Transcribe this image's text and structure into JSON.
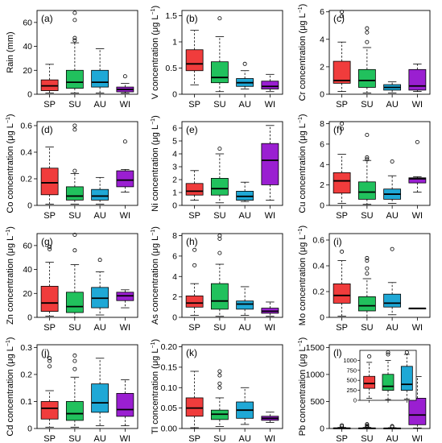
{
  "figure": {
    "seasons": [
      "SP",
      "SU",
      "AU",
      "WI"
    ],
    "colors": [
      "#f03c3c",
      "#21c15d",
      "#1fa8d6",
      "#9a1fd1"
    ]
  },
  "chart_data": [
    {
      "type": "box",
      "label": "(a)",
      "ylabel": "Rain (mm)",
      "unit": false,
      "ylim": [
        0,
        70
      ],
      "yticks": [
        0,
        20,
        40,
        60
      ],
      "categories": [
        "SP",
        "SU",
        "AU",
        "WI"
      ],
      "boxes": [
        {
          "min": 1,
          "q1": 3,
          "median": 7,
          "q3": 12,
          "max": 25,
          "outliers": []
        },
        {
          "min": 1,
          "q1": 5,
          "median": 10,
          "q3": 20,
          "max": 43,
          "outliers": [
            45,
            47,
            62,
            68
          ]
        },
        {
          "min": 1,
          "q1": 6,
          "median": 10,
          "q3": 20,
          "max": 38,
          "outliers": []
        },
        {
          "min": 1,
          "q1": 2,
          "median": 4,
          "q3": 6,
          "max": 9,
          "outliers": [
            15
          ]
        }
      ]
    },
    {
      "type": "box",
      "label": "(b)",
      "ylabel": "V concentration",
      "unit": true,
      "ylim": [
        0,
        1.6
      ],
      "yticks": [
        0.0,
        0.5,
        1.0,
        1.5
      ],
      "categories": [
        "SP",
        "SU",
        "AU",
        "WI"
      ],
      "boxes": [
        {
          "min": 0.18,
          "q1": 0.45,
          "median": 0.58,
          "q3": 0.85,
          "max": 1.22,
          "outliers": []
        },
        {
          "min": 0.05,
          "q1": 0.22,
          "median": 0.32,
          "q3": 0.62,
          "max": 1.1,
          "outliers": [
            1.45
          ]
        },
        {
          "min": 0.1,
          "q1": 0.15,
          "median": 0.22,
          "q3": 0.3,
          "max": 0.45,
          "outliers": [
            0.58
          ]
        },
        {
          "min": 0.05,
          "q1": 0.1,
          "median": 0.15,
          "q3": 0.25,
          "max": 0.38,
          "outliers": []
        }
      ]
    },
    {
      "type": "box",
      "label": "(c)",
      "ylabel": "Cr concentration",
      "unit": true,
      "ylim": [
        0,
        6.1
      ],
      "yticks": [
        0,
        2,
        4,
        6
      ],
      "categories": [
        "SP",
        "SU",
        "AU",
        "WI"
      ],
      "boxes": [
        {
          "min": 0.2,
          "q1": 0.8,
          "median": 1.0,
          "q3": 2.4,
          "max": 3.8,
          "outliers": [
            5.7,
            6.0
          ]
        },
        {
          "min": 0.1,
          "q1": 0.5,
          "median": 1.0,
          "q3": 1.8,
          "max": 3.4,
          "outliers": [
            3.8,
            4.5,
            4.8
          ]
        },
        {
          "min": 0.1,
          "q1": 0.3,
          "median": 0.5,
          "q3": 0.7,
          "max": 0.9,
          "outliers": []
        },
        {
          "min": 0.2,
          "q1": 0.3,
          "median": 0.6,
          "q3": 1.8,
          "max": 2.2,
          "outliers": []
        }
      ]
    },
    {
      "type": "box",
      "label": "(d)",
      "ylabel": "Co concentration",
      "unit": true,
      "ylim": [
        0,
        0.63
      ],
      "yticks": [
        0.0,
        0.2,
        0.4,
        0.6
      ],
      "categories": [
        "SP",
        "SU",
        "AU",
        "WI"
      ],
      "boxes": [
        {
          "min": 0.01,
          "q1": 0.08,
          "median": 0.17,
          "q3": 0.28,
          "max": 0.44,
          "outliers": []
        },
        {
          "min": 0.01,
          "q1": 0.04,
          "median": 0.07,
          "q3": 0.14,
          "max": 0.24,
          "outliers": [
            0.26,
            0.57,
            0.6
          ]
        },
        {
          "min": 0.01,
          "q1": 0.04,
          "median": 0.07,
          "q3": 0.12,
          "max": 0.21,
          "outliers": []
        },
        {
          "min": 0.1,
          "q1": 0.14,
          "median": 0.19,
          "q3": 0.26,
          "max": 0.27,
          "outliers": [
            0.48
          ]
        }
      ]
    },
    {
      "type": "box",
      "label": "(e)",
      "ylabel": "Ni concentration",
      "unit": true,
      "ylim": [
        0,
        6.5
      ],
      "yticks": [
        0,
        1,
        2,
        3,
        4,
        5,
        6
      ],
      "categories": [
        "SP",
        "SU",
        "AU",
        "WI"
      ],
      "boxes": [
        {
          "min": 0.4,
          "q1": 0.8,
          "median": 1.1,
          "q3": 1.7,
          "max": 2.7,
          "outliers": []
        },
        {
          "min": 0.2,
          "q1": 0.8,
          "median": 1.3,
          "q3": 2.1,
          "max": 4.0,
          "outliers": [
            4.4
          ]
        },
        {
          "min": 0.3,
          "q1": 0.4,
          "median": 0.7,
          "q3": 1.1,
          "max": 1.8,
          "outliers": []
        },
        {
          "min": 0.4,
          "q1": 1.6,
          "median": 3.5,
          "q3": 4.8,
          "max": 6.2,
          "outliers": []
        }
      ]
    },
    {
      "type": "box",
      "label": "(f)",
      "ylabel": "Cu concentration",
      "unit": true,
      "ylim": [
        0,
        8.2
      ],
      "yticks": [
        0,
        2,
        4,
        6,
        8
      ],
      "categories": [
        "SP",
        "SU",
        "AU",
        "WI"
      ],
      "boxes": [
        {
          "min": 0.2,
          "q1": 1.2,
          "median": 2.4,
          "q3": 3.2,
          "max": 5.0,
          "outliers": [
            7.5,
            8.0
          ]
        },
        {
          "min": 0.1,
          "q1": 0.6,
          "median": 1.3,
          "q3": 2.3,
          "max": 4.4,
          "outliers": [
            4.5,
            4.7,
            6.9
          ]
        },
        {
          "min": 0.2,
          "q1": 0.6,
          "median": 1.1,
          "q3": 1.6,
          "max": 2.9,
          "outliers": [
            4.3
          ]
        },
        {
          "min": 1.3,
          "q1": 2.2,
          "median": 2.6,
          "q3": 2.7,
          "max": 2.8,
          "outliers": [
            6.2
          ]
        }
      ]
    },
    {
      "type": "box",
      "label": "(g)",
      "ylabel": "Zn concentration",
      "unit": true,
      "ylim": [
        0,
        70
      ],
      "yticks": [
        0,
        20,
        40,
        60
      ],
      "categories": [
        "SP",
        "SU",
        "AU",
        "WI"
      ],
      "boxes": [
        {
          "min": 1,
          "q1": 5,
          "median": 12,
          "q3": 26,
          "max": 46,
          "outliers": [
            57,
            59
          ]
        },
        {
          "min": 0,
          "q1": 4,
          "median": 9,
          "q3": 21,
          "max": 44,
          "outliers": [
            56,
            69
          ]
        },
        {
          "min": 2,
          "q1": 8,
          "median": 16,
          "q3": 25,
          "max": 38,
          "outliers": [
            48
          ]
        },
        {
          "min": 8,
          "q1": 14,
          "median": 18,
          "q3": 21,
          "max": 23,
          "outliers": []
        }
      ]
    },
    {
      "type": "box",
      "label": "(h)",
      "ylabel": "As concentration",
      "unit": true,
      "ylim": [
        0,
        8.2
      ],
      "yticks": [
        0,
        2,
        4,
        6,
        8
      ],
      "categories": [
        "SP",
        "SU",
        "AU",
        "WI"
      ],
      "boxes": [
        {
          "min": 0.2,
          "q1": 1.0,
          "median": 1.4,
          "q3": 2.1,
          "max": 3.3,
          "outliers": [
            5.1,
            6.6
          ]
        },
        {
          "min": 0.1,
          "q1": 0.8,
          "median": 1.6,
          "q3": 3.3,
          "max": 5.2,
          "outliers": [
            6.3,
            7.7,
            8.0
          ]
        },
        {
          "min": 0.2,
          "q1": 0.8,
          "median": 1.3,
          "q3": 1.6,
          "max": 3.0,
          "outliers": []
        },
        {
          "min": 0.1,
          "q1": 0.4,
          "median": 0.6,
          "q3": 0.9,
          "max": 1.5,
          "outliers": []
        }
      ]
    },
    {
      "type": "box",
      "label": "(i)",
      "ylabel": "Mo concentration",
      "unit": true,
      "ylim": [
        0,
        0.65
      ],
      "yticks": [
        0.0,
        0.2,
        0.4,
        0.6
      ],
      "categories": [
        "SP",
        "SU",
        "AU",
        "WI"
      ],
      "boxes": [
        {
          "min": 0.01,
          "q1": 0.11,
          "median": 0.17,
          "q3": 0.26,
          "max": 0.44,
          "outliers": [
            0.51
          ]
        },
        {
          "min": 0.0,
          "q1": 0.05,
          "median": 0.09,
          "q3": 0.16,
          "max": 0.3,
          "outliers": [
            0.34,
            0.38,
            0.44,
            0.46
          ]
        },
        {
          "min": 0.02,
          "q1": 0.08,
          "median": 0.11,
          "q3": 0.18,
          "max": 0.27,
          "outliers": [
            0.53
          ]
        },
        {
          "min": 0.068,
          "q1": 0.069,
          "median": 0.07,
          "q3": 0.071,
          "max": 0.072,
          "outliers": []
        }
      ]
    },
    {
      "type": "box",
      "label": "(j)",
      "ylabel": "Cd concentration",
      "unit": true,
      "ylim": [
        0,
        0.31
      ],
      "yticks": [
        0.0,
        0.1,
        0.2,
        0.3
      ],
      "categories": [
        "SP",
        "SU",
        "AU",
        "WI"
      ],
      "boxes": [
        {
          "min": 0.005,
          "q1": 0.035,
          "median": 0.075,
          "q3": 0.1,
          "max": 0.14,
          "outliers": [
            0.23,
            0.25,
            0.26
          ]
        },
        {
          "min": 0.005,
          "q1": 0.03,
          "median": 0.055,
          "q3": 0.1,
          "max": 0.19,
          "outliers": [
            0.22,
            0.25,
            0.27
          ]
        },
        {
          "min": 0.01,
          "q1": 0.06,
          "median": 0.095,
          "q3": 0.165,
          "max": 0.26,
          "outliers": []
        },
        {
          "min": 0.01,
          "q1": 0.045,
          "median": 0.07,
          "q3": 0.13,
          "max": 0.18,
          "outliers": []
        }
      ]
    },
    {
      "type": "box",
      "label": "(k)",
      "ylabel": "Tl concentration",
      "unit": true,
      "ylim": [
        0,
        0.205
      ],
      "yticks": [
        0.0,
        0.05,
        0.1,
        0.15,
        0.2
      ],
      "ytick_labels": [
        "0.00",
        "0.05",
        "0.10",
        "0.15",
        "0.20"
      ],
      "categories": [
        "SP",
        "SU",
        "AU",
        "WI"
      ],
      "boxes": [
        {
          "min": 0.002,
          "q1": 0.03,
          "median": 0.05,
          "q3": 0.075,
          "max": 0.14,
          "outliers": []
        },
        {
          "min": 0.005,
          "q1": 0.022,
          "median": 0.035,
          "q3": 0.045,
          "max": 0.075,
          "outliers": [
            0.1,
            0.11,
            0.13,
            0.14
          ]
        },
        {
          "min": 0.01,
          "q1": 0.025,
          "median": 0.045,
          "q3": 0.065,
          "max": 0.1,
          "outliers": []
        },
        {
          "min": 0.015,
          "q1": 0.02,
          "median": 0.025,
          "q3": 0.03,
          "max": 0.04,
          "outliers": []
        }
      ]
    },
    {
      "type": "box",
      "label": "(l)",
      "ylabel": "Pb concentration",
      "unit": true,
      "ylim": [
        0,
        1550
      ],
      "yticks": [
        0,
        500,
        1000,
        1500
      ],
      "categories": [
        "SP",
        "SU",
        "AU",
        "WI"
      ],
      "boxes": [
        {
          "min": 0,
          "q1": 2,
          "median": 5,
          "q3": 10,
          "max": 20,
          "outliers": [
            40,
            60
          ]
        },
        {
          "min": 0,
          "q1": 2,
          "median": 4,
          "q3": 10,
          "max": 20,
          "outliers": [
            30,
            40,
            60,
            80
          ]
        },
        {
          "min": 0,
          "q1": 2,
          "median": 4,
          "q3": 8,
          "max": 15,
          "outliers": [
            30,
            45
          ]
        },
        {
          "min": 10,
          "q1": 70,
          "median": 250,
          "q3": 560,
          "max": 960,
          "outliers": []
        }
      ],
      "inset": {
        "ylim": [
          0,
          1250
        ],
        "yticks": [
          0,
          250,
          500,
          750,
          1000
        ],
        "categories": [
          "SP",
          "SU",
          "AU"
        ],
        "boxes": [
          {
            "min": 50,
            "q1": 300,
            "median": 420,
            "q3": 600,
            "max": 950,
            "outliers": [
              1100
            ]
          },
          {
            "min": 20,
            "q1": 250,
            "median": 350,
            "q3": 650,
            "max": 1000,
            "outliers": [
              1150,
              1200
            ]
          },
          {
            "min": 30,
            "q1": 250,
            "median": 400,
            "q3": 850,
            "max": 1150,
            "outliers": [
              1200
            ]
          }
        ]
      }
    }
  ]
}
